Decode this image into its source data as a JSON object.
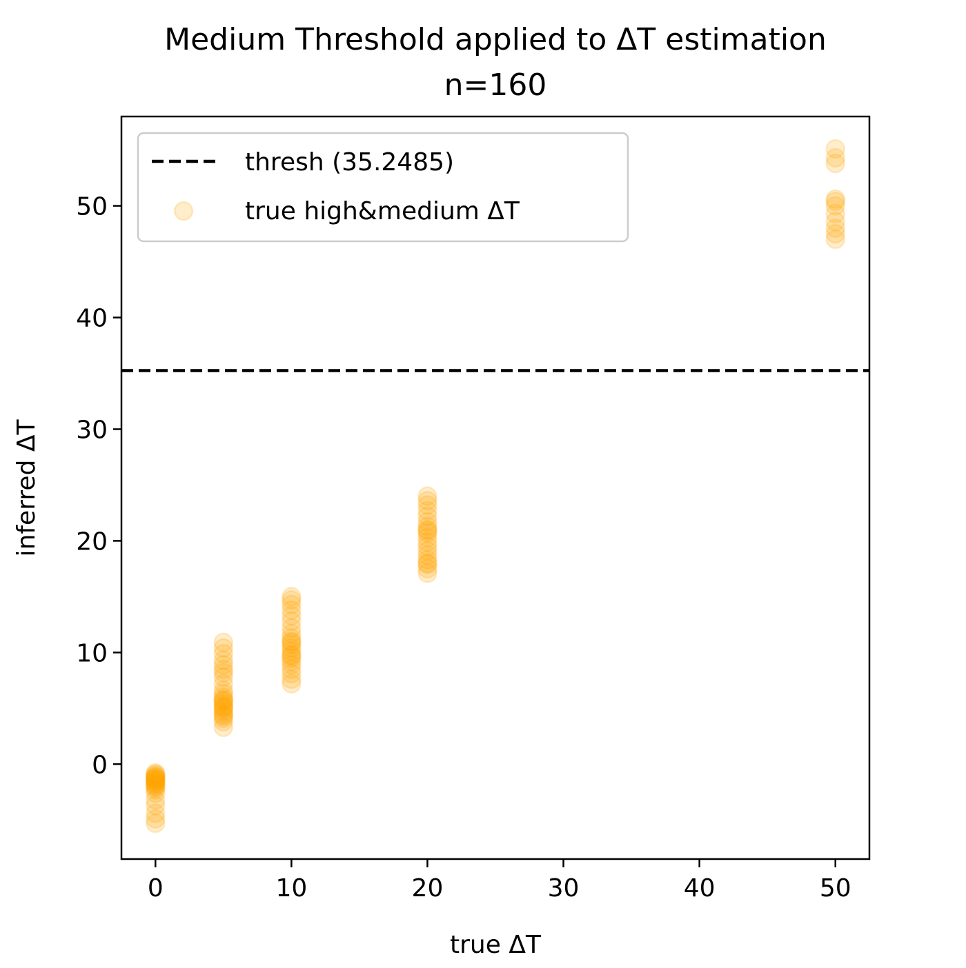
{
  "chart_data": {
    "type": "scatter",
    "title": "Medium Threshold applied to ΔT estimation",
    "subtitle": "n=160",
    "xlabel": "true ΔT",
    "ylabel": "inferred ΔT",
    "xlim": [
      -2.5,
      52.5
    ],
    "ylim": [
      -8.5,
      58
    ],
    "xticks": [
      0,
      10,
      20,
      30,
      40,
      50
    ],
    "yticks": [
      0,
      10,
      20,
      30,
      40,
      50
    ],
    "xtick_labels": [
      "0",
      "10",
      "20",
      "30",
      "40",
      "50"
    ],
    "ytick_labels": [
      "0",
      "10",
      "20",
      "30",
      "40",
      "50"
    ],
    "grid": false,
    "legend_position": "top-left",
    "threshold": {
      "name": "thresh (35.2485)",
      "value": 35.2485,
      "style": "dashed",
      "color": "#000000"
    },
    "series": [
      {
        "name": "true high&medium ΔT",
        "color": "#FFA500",
        "alpha": 0.2,
        "points": [
          {
            "x": 0,
            "y": -5.3
          },
          {
            "x": 0,
            "y": -4.9
          },
          {
            "x": 0,
            "y": -4.4
          },
          {
            "x": 0,
            "y": -3.7
          },
          {
            "x": 0,
            "y": -3.2
          },
          {
            "x": 0,
            "y": -2.6
          },
          {
            "x": 0,
            "y": -2.3
          },
          {
            "x": 0,
            "y": -2.1
          },
          {
            "x": 0,
            "y": -1.9
          },
          {
            "x": 0,
            "y": -1.8
          },
          {
            "x": 0,
            "y": -1.6
          },
          {
            "x": 0,
            "y": -1.5
          },
          {
            "x": 0,
            "y": -1.4
          },
          {
            "x": 0,
            "y": -1.3
          },
          {
            "x": 0,
            "y": -1.2
          },
          {
            "x": 0,
            "y": -1.1
          },
          {
            "x": 0,
            "y": -1.0
          },
          {
            "x": 0,
            "y": -0.9
          },
          {
            "x": 0,
            "y": -0.8
          },
          {
            "x": 0,
            "y": -1.7
          },
          {
            "x": 0,
            "y": -2.0
          },
          {
            "x": 0,
            "y": -1.4
          },
          {
            "x": 0,
            "y": -1.2
          },
          {
            "x": 5,
            "y": 3.3
          },
          {
            "x": 5,
            "y": 3.8
          },
          {
            "x": 5,
            "y": 4.1
          },
          {
            "x": 5,
            "y": 4.4
          },
          {
            "x": 5,
            "y": 4.6
          },
          {
            "x": 5,
            "y": 4.8
          },
          {
            "x": 5,
            "y": 5.0
          },
          {
            "x": 5,
            "y": 5.2
          },
          {
            "x": 5,
            "y": 5.4
          },
          {
            "x": 5,
            "y": 5.6
          },
          {
            "x": 5,
            "y": 5.8
          },
          {
            "x": 5,
            "y": 6.0
          },
          {
            "x": 5,
            "y": 6.3
          },
          {
            "x": 5,
            "y": 6.6
          },
          {
            "x": 5,
            "y": 7.2
          },
          {
            "x": 5,
            "y": 7.8
          },
          {
            "x": 5,
            "y": 8.2
          },
          {
            "x": 5,
            "y": 8.5
          },
          {
            "x": 5,
            "y": 8.9
          },
          {
            "x": 5,
            "y": 9.3
          },
          {
            "x": 5,
            "y": 9.9
          },
          {
            "x": 5,
            "y": 10.4
          },
          {
            "x": 5,
            "y": 10.9
          },
          {
            "x": 5,
            "y": 5.1
          },
          {
            "x": 5,
            "y": 4.3
          },
          {
            "x": 5,
            "y": 5.7
          },
          {
            "x": 10,
            "y": 7.2
          },
          {
            "x": 10,
            "y": 7.6
          },
          {
            "x": 10,
            "y": 8.1
          },
          {
            "x": 10,
            "y": 8.5
          },
          {
            "x": 10,
            "y": 8.9
          },
          {
            "x": 10,
            "y": 9.2
          },
          {
            "x": 10,
            "y": 9.5
          },
          {
            "x": 10,
            "y": 9.8
          },
          {
            "x": 10,
            "y": 10.1
          },
          {
            "x": 10,
            "y": 10.4
          },
          {
            "x": 10,
            "y": 10.7
          },
          {
            "x": 10,
            "y": 11.0
          },
          {
            "x": 10,
            "y": 11.3
          },
          {
            "x": 10,
            "y": 11.7
          },
          {
            "x": 10,
            "y": 12.2
          },
          {
            "x": 10,
            "y": 12.8
          },
          {
            "x": 10,
            "y": 13.3
          },
          {
            "x": 10,
            "y": 13.8
          },
          {
            "x": 10,
            "y": 14.3
          },
          {
            "x": 10,
            "y": 14.7
          },
          {
            "x": 10,
            "y": 15.0
          },
          {
            "x": 10,
            "y": 9.7
          },
          {
            "x": 10,
            "y": 10.9
          },
          {
            "x": 20,
            "y": 17.1
          },
          {
            "x": 20,
            "y": 17.5
          },
          {
            "x": 20,
            "y": 17.9
          },
          {
            "x": 20,
            "y": 18.3
          },
          {
            "x": 20,
            "y": 18.7
          },
          {
            "x": 20,
            "y": 19.1
          },
          {
            "x": 20,
            "y": 19.5
          },
          {
            "x": 20,
            "y": 19.9
          },
          {
            "x": 20,
            "y": 20.3
          },
          {
            "x": 20,
            "y": 20.7
          },
          {
            "x": 20,
            "y": 21.0
          },
          {
            "x": 20,
            "y": 21.3
          },
          {
            "x": 20,
            "y": 21.7
          },
          {
            "x": 20,
            "y": 22.2
          },
          {
            "x": 20,
            "y": 22.7
          },
          {
            "x": 20,
            "y": 23.2
          },
          {
            "x": 20,
            "y": 23.6
          },
          {
            "x": 20,
            "y": 24.0
          },
          {
            "x": 20,
            "y": 20.9
          },
          {
            "x": 20,
            "y": 18.0
          },
          {
            "x": 50,
            "y": 47.0
          },
          {
            "x": 50,
            "y": 47.5
          },
          {
            "x": 50,
            "y": 48.0
          },
          {
            "x": 50,
            "y": 48.6
          },
          {
            "x": 50,
            "y": 49.3
          },
          {
            "x": 50,
            "y": 50.0
          },
          {
            "x": 50,
            "y": 50.4
          },
          {
            "x": 50,
            "y": 50.6
          },
          {
            "x": 50,
            "y": 53.8
          },
          {
            "x": 50,
            "y": 54.3
          },
          {
            "x": 50,
            "y": 55.1
          }
        ]
      }
    ]
  }
}
